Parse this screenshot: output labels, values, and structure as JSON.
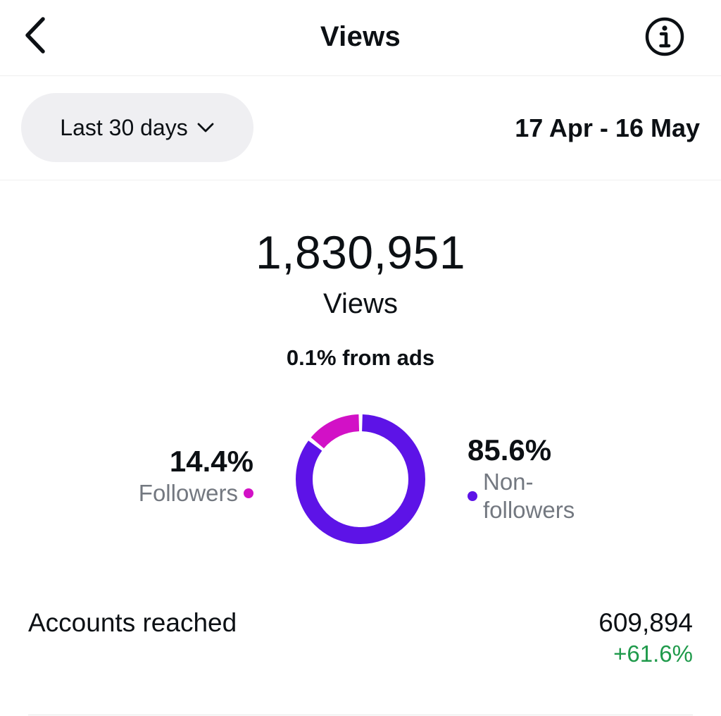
{
  "header": {
    "title": "Views",
    "back_icon": "chevron-left-icon",
    "info_icon": "info-circle-icon"
  },
  "filter": {
    "period_label": "Last 30 days",
    "period_icon": "chevron-down-icon",
    "date_range": "17 Apr - 16 May"
  },
  "summary": {
    "total": "1,830,951",
    "total_label": "Views",
    "ads_note": "0.1% from ads"
  },
  "breakdown": {
    "followers_pct": "14.4%",
    "followers_label": "Followers",
    "nonfollowers_pct": "85.6%",
    "nonfollowers_label": "Non-followers",
    "followers_share": 0.144,
    "nonfollowers_share": 0.856,
    "colors": {
      "followers": "#d211c6",
      "nonfollowers": "#5d13e7"
    }
  },
  "metrics": [
    {
      "label": "Accounts reached",
      "value": "609,894",
      "change": "+61.6%",
      "change_color": "#1f9a4b"
    }
  ]
}
